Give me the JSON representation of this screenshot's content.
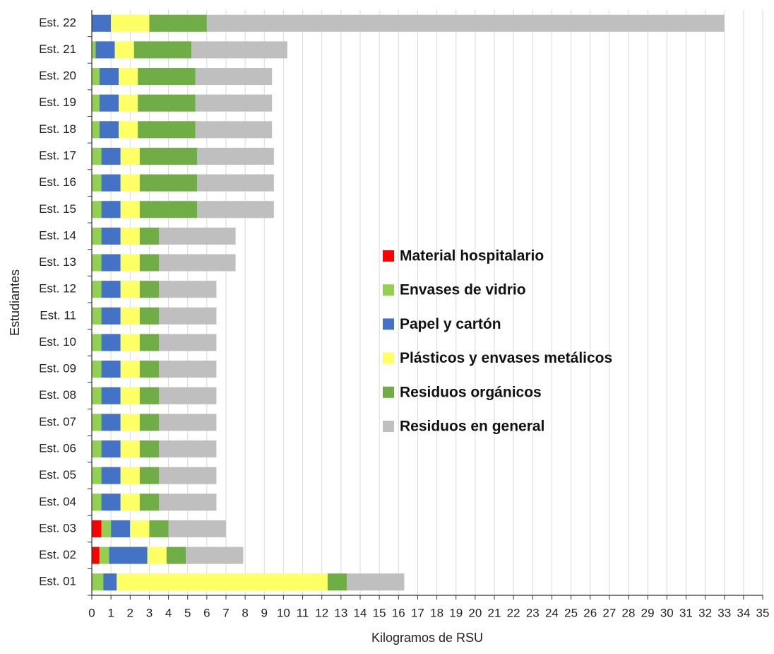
{
  "chart_data": {
    "type": "bar",
    "orientation": "horizontal",
    "stacked": true,
    "xlabel": "Kilogramos de RSU",
    "ylabel": "Estudiantes",
    "categories": [
      "Est. 01",
      "Est. 02",
      "Est. 03",
      "Est. 04",
      "Est. 05",
      "Est. 06",
      "Est. 07",
      "Est. 08",
      "Est. 09",
      "Est. 10",
      "Est. 11",
      "Est. 12",
      "Est. 13",
      "Est. 14",
      "Est. 15",
      "Est. 16",
      "Est. 17",
      "Est. 18",
      "Est. 19",
      "Est. 20",
      "Est. 21",
      "Est. 22"
    ],
    "series": [
      {
        "name": "Material hospitalario",
        "color": "#ff0000",
        "values": [
          0,
          0.4,
          0.5,
          0,
          0,
          0,
          0,
          0,
          0,
          0,
          0,
          0,
          0,
          0,
          0,
          0,
          0,
          0,
          0,
          0,
          0,
          0
        ]
      },
      {
        "name": "Envases de vidrio",
        "color": "#92d050",
        "values": [
          0.6,
          0.5,
          0.5,
          0.5,
          0.5,
          0.5,
          0.5,
          0.5,
          0.5,
          0.5,
          0.5,
          0.5,
          0.5,
          0.5,
          0.5,
          0.5,
          0.5,
          0.4,
          0.4,
          0.4,
          0.2,
          0
        ]
      },
      {
        "name": "Papel y cartón",
        "color": "#4472c4",
        "values": [
          0.7,
          2,
          1,
          1,
          1,
          1,
          1,
          1,
          1,
          1,
          1,
          1,
          1,
          1,
          1,
          1,
          1,
          1,
          1,
          1,
          1,
          1
        ]
      },
      {
        "name": "Plásticos y envases metálicos",
        "color": "#ffff66",
        "values": [
          11,
          1,
          1,
          1,
          1,
          1,
          1,
          1,
          1,
          1,
          1,
          1,
          1,
          1,
          1,
          1,
          1,
          1,
          1,
          1,
          1,
          2
        ]
      },
      {
        "name": "Residuos orgánicos",
        "color": "#70ad47",
        "values": [
          1,
          1,
          1,
          1,
          1,
          1,
          1,
          1,
          1,
          1,
          1,
          1,
          1,
          1,
          3,
          3,
          3,
          3,
          3,
          3,
          3,
          3
        ]
      },
      {
        "name": "Residuos en general",
        "color": "#bfbfbf",
        "values": [
          3,
          3,
          3,
          3,
          3,
          3,
          3,
          3,
          3,
          3,
          3,
          3,
          4,
          4,
          4,
          4,
          4,
          4,
          4,
          4,
          5,
          27
        ]
      }
    ],
    "xlim": [
      0,
      35
    ],
    "xticks": [
      0,
      1,
      2,
      3,
      4,
      5,
      6,
      7,
      8,
      9,
      10,
      11,
      12,
      13,
      14,
      15,
      16,
      17,
      18,
      19,
      20,
      21,
      22,
      23,
      24,
      25,
      26,
      27,
      28,
      29,
      30,
      31,
      32,
      33,
      34,
      35
    ],
    "grid": true
  }
}
